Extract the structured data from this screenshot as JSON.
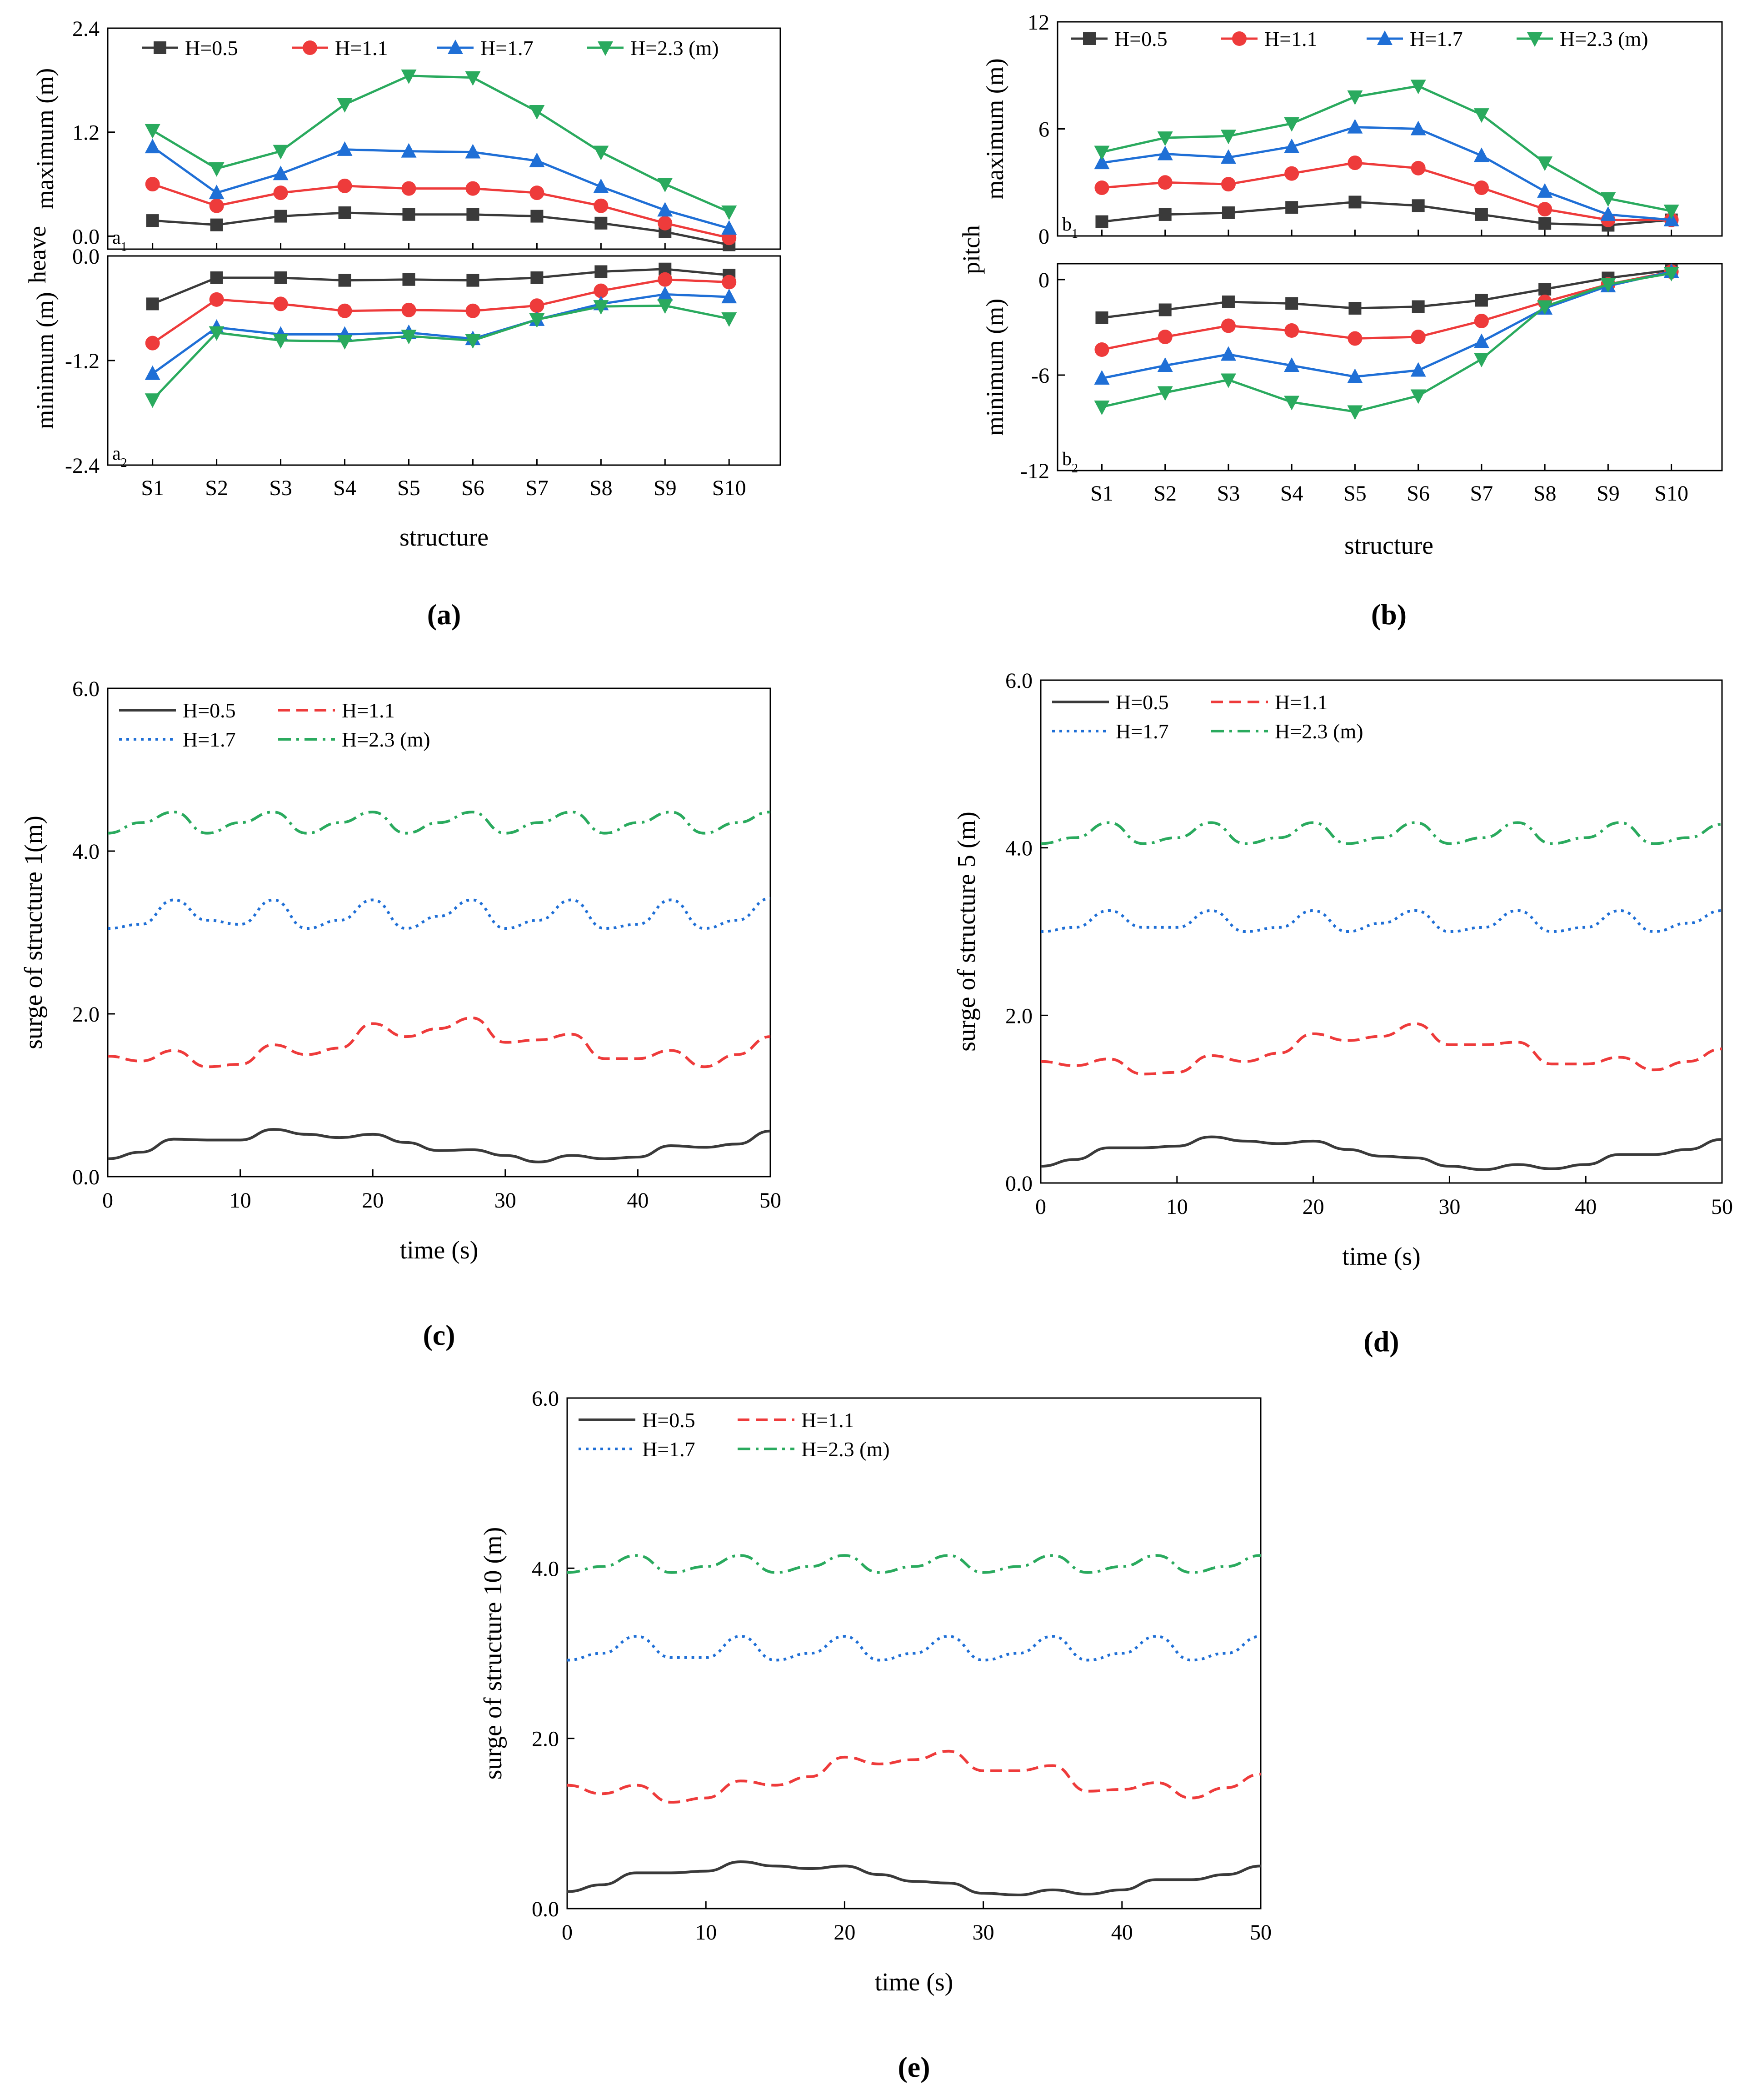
{
  "series_names": [
    "H=0.5",
    "H=1.1",
    "H=1.7",
    "H=2.3 (m)"
  ],
  "colors": {
    "H05": "#3a3a3a",
    "H11": "#ee3b3b",
    "H17": "#1f6fd6",
    "H23": "#2aaa5e",
    "axis": "#000000"
  },
  "chart_data": [
    {
      "id": "a1",
      "type": "line",
      "title": "(a)",
      "corner_label": "a1",
      "ylabel_group": "heave",
      "ylabel": "maximum (m)",
      "ylim": [
        -0.15,
        2.4
      ],
      "yticks": [
        "0.0",
        "1.2",
        "2.4"
      ],
      "ytick_values": [
        0.0,
        1.2,
        2.4
      ],
      "categories": [
        "S1",
        "S2",
        "S3",
        "S4",
        "S5",
        "S6",
        "S7",
        "S8",
        "S9",
        "S10"
      ],
      "series": [
        {
          "name": "H=0.5",
          "marker": "square",
          "values": [
            0.18,
            0.13,
            0.23,
            0.27,
            0.25,
            0.25,
            0.23,
            0.15,
            0.05,
            -0.1
          ]
        },
        {
          "name": "H=1.1",
          "marker": "circle",
          "values": [
            0.6,
            0.35,
            0.5,
            0.58,
            0.55,
            0.55,
            0.5,
            0.35,
            0.15,
            -0.02
          ]
        },
        {
          "name": "H=1.7",
          "marker": "triangle-up",
          "values": [
            1.03,
            0.5,
            0.72,
            1.0,
            0.98,
            0.97,
            0.87,
            0.57,
            0.3,
            0.09
          ]
        },
        {
          "name": "H=2.3 (m)",
          "marker": "triangle-down",
          "values": [
            1.22,
            0.78,
            0.98,
            1.52,
            1.85,
            1.83,
            1.44,
            0.97,
            0.6,
            0.28
          ]
        }
      ]
    },
    {
      "id": "a2",
      "type": "line",
      "corner_label": "a2",
      "xlabel": "structure",
      "ylabel": "minimum (m)",
      "ylim": [
        -2.4,
        0.0
      ],
      "yticks": [
        "-2.4",
        "-1.2",
        "0.0"
      ],
      "ytick_values": [
        -2.4,
        -1.2,
        0.0
      ],
      "categories": [
        "S1",
        "S2",
        "S3",
        "S4",
        "S5",
        "S6",
        "S7",
        "S8",
        "S9",
        "S10"
      ],
      "series": [
        {
          "name": "H=0.5",
          "marker": "square",
          "values": [
            -0.55,
            -0.25,
            -0.25,
            -0.28,
            -0.27,
            -0.28,
            -0.25,
            -0.18,
            -0.15,
            -0.22
          ]
        },
        {
          "name": "H=1.1",
          "marker": "circle",
          "values": [
            -1.0,
            -0.5,
            -0.55,
            -0.63,
            -0.62,
            -0.63,
            -0.57,
            -0.4,
            -0.27,
            -0.3
          ]
        },
        {
          "name": "H=1.7",
          "marker": "triangle-up",
          "values": [
            -1.35,
            -0.82,
            -0.9,
            -0.9,
            -0.88,
            -0.95,
            -0.73,
            -0.55,
            -0.44,
            -0.47
          ]
        },
        {
          "name": "H=2.3 (m)",
          "marker": "triangle-down",
          "values": [
            -1.65,
            -0.88,
            -0.97,
            -0.98,
            -0.92,
            -0.97,
            -0.73,
            -0.58,
            -0.57,
            -0.72
          ]
        }
      ]
    },
    {
      "id": "b1",
      "type": "line",
      "title": "(b)",
      "corner_label": "b1",
      "ylabel_group": "pitch",
      "ylabel": "maximum (m)",
      "ylim": [
        0,
        12
      ],
      "yticks": [
        "0",
        "6",
        "12"
      ],
      "ytick_values": [
        0,
        6,
        12
      ],
      "categories": [
        "S1",
        "S2",
        "S3",
        "S4",
        "S5",
        "S6",
        "S7",
        "S8",
        "S9",
        "S10"
      ],
      "series": [
        {
          "name": "H=0.5",
          "marker": "square",
          "values": [
            0.8,
            1.2,
            1.3,
            1.6,
            1.9,
            1.7,
            1.2,
            0.7,
            0.6,
            0.9
          ]
        },
        {
          "name": "H=1.1",
          "marker": "circle",
          "values": [
            2.7,
            3.0,
            2.9,
            3.5,
            4.1,
            3.8,
            2.7,
            1.5,
            0.9,
            0.9
          ]
        },
        {
          "name": "H=1.7",
          "marker": "triangle-up",
          "values": [
            4.1,
            4.6,
            4.4,
            5.0,
            6.1,
            6.0,
            4.5,
            2.5,
            1.2,
            0.9
          ]
        },
        {
          "name": "H=2.3 (m)",
          "marker": "triangle-down",
          "values": [
            4.7,
            5.5,
            5.6,
            6.3,
            7.8,
            8.4,
            6.8,
            4.1,
            2.1,
            1.4
          ]
        }
      ]
    },
    {
      "id": "b2",
      "type": "line",
      "corner_label": "b2",
      "xlabel": "structure",
      "ylabel": "minimum (m)",
      "ylim": [
        -12,
        1.0
      ],
      "yticks": [
        "-12",
        "-6",
        "0"
      ],
      "ytick_values": [
        -12,
        -6,
        0
      ],
      "categories": [
        "S1",
        "S2",
        "S3",
        "S4",
        "S5",
        "S6",
        "S7",
        "S8",
        "S9",
        "S10"
      ],
      "series": [
        {
          "name": "H=0.5",
          "marker": "square",
          "values": [
            -2.4,
            -1.9,
            -1.4,
            -1.5,
            -1.8,
            -1.7,
            -1.3,
            -0.6,
            0.1,
            0.6
          ]
        },
        {
          "name": "H=1.1",
          "marker": "circle",
          "values": [
            -4.4,
            -3.6,
            -2.9,
            -3.2,
            -3.7,
            -3.6,
            -2.6,
            -1.4,
            -0.3,
            0.5
          ]
        },
        {
          "name": "H=1.7",
          "marker": "triangle-up",
          "values": [
            -6.2,
            -5.4,
            -4.7,
            -5.4,
            -6.1,
            -5.7,
            -3.9,
            -1.8,
            -0.4,
            0.5
          ]
        },
        {
          "name": "H=2.3 (m)",
          "marker": "triangle-down",
          "values": [
            -8.0,
            -7.1,
            -6.3,
            -7.7,
            -8.3,
            -7.3,
            -5.0,
            -1.7,
            -0.3,
            0.4
          ]
        }
      ]
    },
    {
      "id": "c",
      "type": "line",
      "title": "(c)",
      "xlabel": "time (s)",
      "ylabel": "surge of structure 1(m)",
      "xlim": [
        0,
        50
      ],
      "xticks": [
        "0",
        "10",
        "20",
        "30",
        "40",
        "50"
      ],
      "ylim": [
        0,
        6
      ],
      "yticks": [
        "0.0",
        "2.0",
        "4.0",
        "6.0"
      ],
      "ytick_values": [
        0,
        2,
        4,
        6
      ],
      "time_samples": [
        0,
        2.5,
        5,
        7.5,
        10,
        12.5,
        15,
        17.5,
        20,
        22.5,
        25,
        27.5,
        30,
        32.5,
        35,
        37.5,
        40,
        42.5,
        45,
        47.5,
        50
      ],
      "series": [
        {
          "name": "H=0.5",
          "style": "solid",
          "values": [
            0.22,
            0.3,
            0.46,
            0.45,
            0.45,
            0.58,
            0.52,
            0.48,
            0.52,
            0.42,
            0.32,
            0.33,
            0.26,
            0.18,
            0.26,
            0.22,
            0.24,
            0.38,
            0.36,
            0.4,
            0.56
          ]
        },
        {
          "name": "H=1.1",
          "style": "dashed",
          "values": [
            1.48,
            1.42,
            1.55,
            1.35,
            1.38,
            1.62,
            1.5,
            1.58,
            1.88,
            1.72,
            1.82,
            1.95,
            1.65,
            1.68,
            1.75,
            1.45,
            1.45,
            1.55,
            1.35,
            1.5,
            1.72
          ]
        },
        {
          "name": "H=1.7",
          "style": "dotted",
          "values": [
            3.05,
            3.1,
            3.4,
            3.15,
            3.1,
            3.4,
            3.05,
            3.15,
            3.4,
            3.05,
            3.2,
            3.4,
            3.05,
            3.15,
            3.4,
            3.05,
            3.1,
            3.4,
            3.05,
            3.15,
            3.42
          ]
        },
        {
          "name": "H=2.3 (m)",
          "style": "dashdot",
          "values": [
            4.22,
            4.35,
            4.48,
            4.22,
            4.35,
            4.48,
            4.22,
            4.35,
            4.48,
            4.22,
            4.35,
            4.48,
            4.22,
            4.35,
            4.48,
            4.22,
            4.35,
            4.48,
            4.22,
            4.35,
            4.48
          ]
        }
      ]
    },
    {
      "id": "d",
      "type": "line",
      "title": "(d)",
      "xlabel": "time (s)",
      "ylabel": "surge of structure 5 (m)",
      "xlim": [
        0,
        50
      ],
      "xticks": [
        "0",
        "10",
        "20",
        "30",
        "40",
        "50"
      ],
      "ylim": [
        0,
        6
      ],
      "yticks": [
        "0.0",
        "2.0",
        "4.0",
        "6.0"
      ],
      "ytick_values": [
        0,
        2,
        4,
        6
      ],
      "time_samples": [
        0,
        2.5,
        5,
        7.5,
        10,
        12.5,
        15,
        17.5,
        20,
        22.5,
        25,
        27.5,
        30,
        32.5,
        35,
        37.5,
        40,
        42.5,
        45,
        47.5,
        50
      ],
      "series": [
        {
          "name": "H=0.5",
          "style": "solid",
          "values": [
            0.2,
            0.28,
            0.42,
            0.42,
            0.44,
            0.55,
            0.5,
            0.47,
            0.5,
            0.4,
            0.32,
            0.3,
            0.2,
            0.16,
            0.22,
            0.17,
            0.22,
            0.34,
            0.34,
            0.4,
            0.52
          ]
        },
        {
          "name": "H=1.1",
          "style": "dashed",
          "values": [
            1.45,
            1.4,
            1.48,
            1.3,
            1.32,
            1.52,
            1.45,
            1.55,
            1.78,
            1.7,
            1.75,
            1.9,
            1.65,
            1.65,
            1.68,
            1.42,
            1.42,
            1.5,
            1.35,
            1.45,
            1.6
          ]
        },
        {
          "name": "H=1.7",
          "style": "dotted",
          "values": [
            3.0,
            3.05,
            3.25,
            3.05,
            3.05,
            3.25,
            3.0,
            3.05,
            3.25,
            3.0,
            3.1,
            3.25,
            3.0,
            3.05,
            3.25,
            3.0,
            3.05,
            3.25,
            3.0,
            3.1,
            3.25
          ]
        },
        {
          "name": "H=2.3 (m)",
          "style": "dashdot",
          "values": [
            4.05,
            4.12,
            4.3,
            4.05,
            4.12,
            4.3,
            4.05,
            4.12,
            4.3,
            4.05,
            4.12,
            4.3,
            4.05,
            4.12,
            4.3,
            4.05,
            4.12,
            4.3,
            4.05,
            4.12,
            4.28
          ]
        }
      ]
    },
    {
      "id": "e",
      "type": "line",
      "title": "(e)",
      "xlabel": "time (s)",
      "ylabel": "surge of structure 10 (m)",
      "xlim": [
        0,
        50
      ],
      "xticks": [
        "0",
        "10",
        "20",
        "30",
        "40",
        "50"
      ],
      "ylim": [
        0,
        6
      ],
      "yticks": [
        "0.0",
        "2.0",
        "4.0",
        "6.0"
      ],
      "ytick_values": [
        0,
        2,
        4,
        6
      ],
      "time_samples": [
        0,
        2.5,
        5,
        7.5,
        10,
        12.5,
        15,
        17.5,
        20,
        22.5,
        25,
        27.5,
        30,
        32.5,
        35,
        37.5,
        40,
        42.5,
        45,
        47.5,
        50
      ],
      "series": [
        {
          "name": "H=0.5",
          "style": "solid",
          "values": [
            0.2,
            0.28,
            0.42,
            0.42,
            0.44,
            0.55,
            0.5,
            0.47,
            0.5,
            0.4,
            0.32,
            0.3,
            0.18,
            0.16,
            0.22,
            0.17,
            0.22,
            0.34,
            0.34,
            0.4,
            0.5
          ]
        },
        {
          "name": "H=1.1",
          "style": "dashed",
          "values": [
            1.45,
            1.35,
            1.45,
            1.25,
            1.3,
            1.5,
            1.45,
            1.55,
            1.78,
            1.7,
            1.75,
            1.85,
            1.62,
            1.62,
            1.68,
            1.38,
            1.4,
            1.48,
            1.3,
            1.42,
            1.58
          ]
        },
        {
          "name": "H=1.7",
          "style": "dotted",
          "values": [
            2.92,
            3.0,
            3.2,
            2.95,
            2.95,
            3.2,
            2.92,
            3.0,
            3.2,
            2.92,
            3.0,
            3.2,
            2.92,
            3.0,
            3.2,
            2.92,
            3.0,
            3.2,
            2.92,
            3.0,
            3.2
          ]
        },
        {
          "name": "H=2.3 (m)",
          "style": "dashdot",
          "values": [
            3.95,
            4.02,
            4.15,
            3.95,
            4.02,
            4.15,
            3.95,
            4.02,
            4.15,
            3.95,
            4.02,
            4.15,
            3.95,
            4.02,
            4.15,
            3.95,
            4.02,
            4.15,
            3.95,
            4.02,
            4.15
          ]
        }
      ]
    }
  ]
}
